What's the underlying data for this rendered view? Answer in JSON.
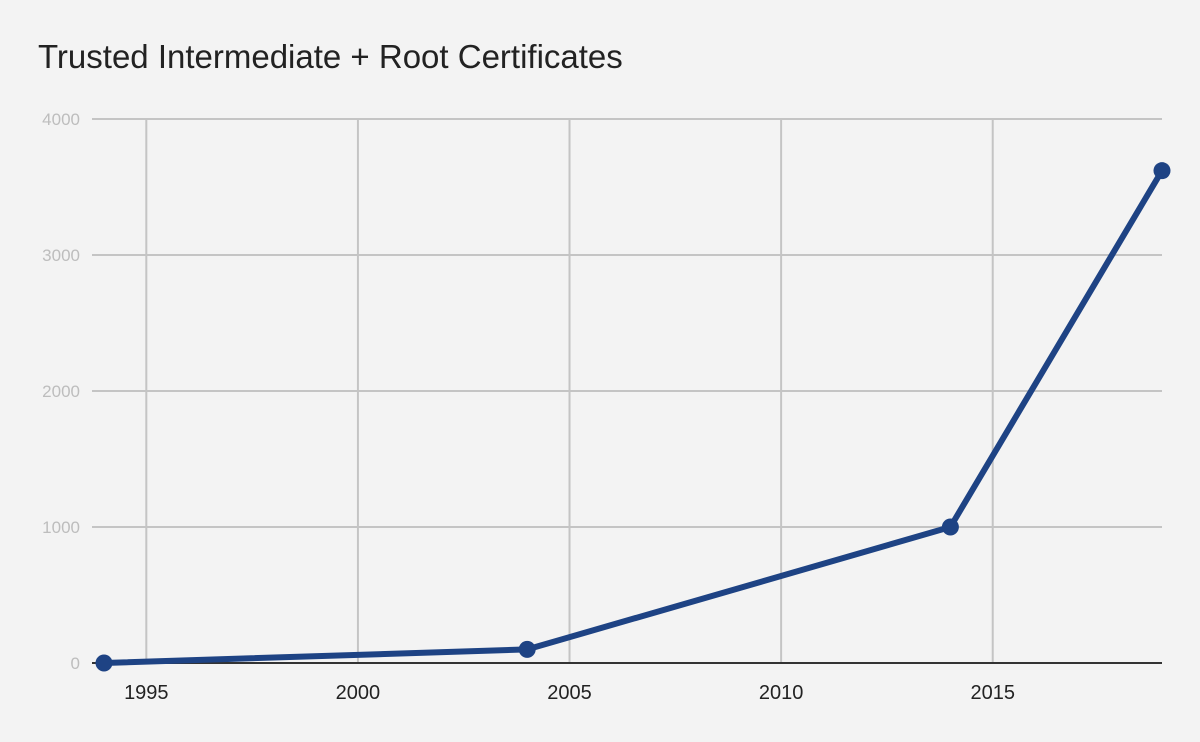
{
  "chart_data": {
    "type": "line",
    "title": "Trusted Intermediate + Root Certificates",
    "xlabel": "",
    "ylabel": "",
    "x": [
      1994,
      2004,
      2014,
      2019
    ],
    "series": [
      {
        "values": [
          0,
          100,
          1000,
          3620
        ]
      }
    ],
    "xlim": [
      1994,
      2019
    ],
    "ylim": [
      0,
      4000
    ],
    "xticks": [
      1995,
      2000,
      2005,
      2010,
      2015
    ],
    "yticks": [
      0,
      1000,
      2000,
      3000,
      4000
    ],
    "grid": true,
    "legend": "none",
    "colors": {
      "line": "#1e4384",
      "grid": "#c4c4c4",
      "axis": "#333333",
      "background": "#f3f3f3"
    }
  }
}
